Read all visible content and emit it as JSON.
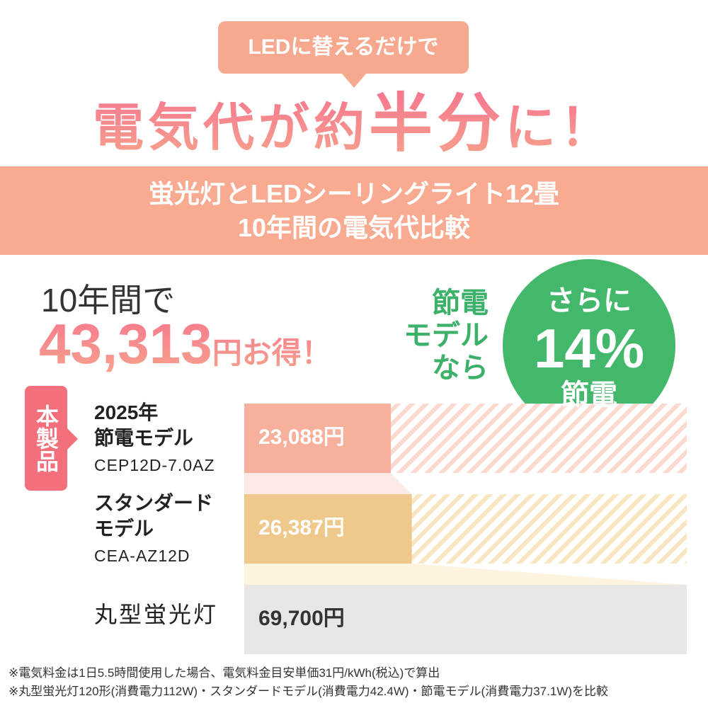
{
  "callout": "LEDに替えるだけで",
  "headline": [
    "電気代が約",
    "半分",
    "に！"
  ],
  "band": [
    "蛍光灯とLEDシーリングライト12畳",
    "10年間の電気代比較"
  ],
  "savings": {
    "lead": "10年間で",
    "amount": "43,313",
    "suffix": "円お得！"
  },
  "badge_lead": "節電\nモデル\nなら",
  "badge": {
    "top": "さらに",
    "main": "14%",
    "bottom": "節電"
  },
  "tag": "本製品",
  "chart_data": {
    "type": "bar",
    "orientation": "horizontal",
    "categories": [
      "2025年\n節電モデル",
      "スタンダード\nモデル",
      "丸型蛍光灯"
    ],
    "model_codes": [
      "CEP12D-7.0AZ",
      "CEA-AZ12D",
      null
    ],
    "values": [
      23088,
      26387,
      69700
    ],
    "value_labels": [
      "23,088円",
      "26,387円",
      "69,700円"
    ],
    "colors": [
      "#f7b09b",
      "#efc98b",
      "#e8e7e6"
    ]
  },
  "footnotes": [
    "※電気料金は1日5.5時間使用した場合、電気料金目安単価31円/kWh(税込)で算出",
    "※丸型蛍光灯120形(消費電力112W)・スタンダードモデル(消費電力42.4W)・節電モデル(消費電力37.1W)を比較"
  ]
}
